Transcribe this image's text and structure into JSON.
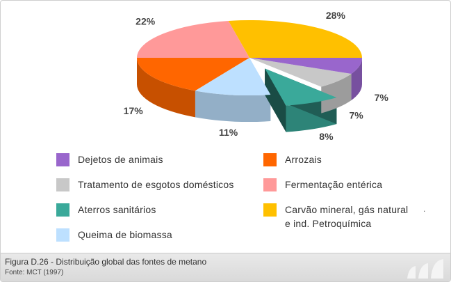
{
  "chart_data": {
    "type": "pie",
    "title": "",
    "slices": [
      {
        "label": "Carvão mineral, gás natural\ne ind. Petroquímica",
        "value": 28,
        "value_label": "28%",
        "color": "#ffc000",
        "exploded": false
      },
      {
        "label": "Fermentação entérica",
        "value": 22,
        "value_label": "22%",
        "color": "#ff9999",
        "exploded": false
      },
      {
        "label": "Arrozais",
        "value": 17,
        "value_label": "17%",
        "color": "#ff6600",
        "exploded": false
      },
      {
        "label": "Queima de biomassa",
        "value": 11,
        "value_label": "11%",
        "color": "#bde0ff",
        "exploded": false
      },
      {
        "label": "Aterros sanitários",
        "value": 8,
        "value_label": "8%",
        "color": "#3aa99a",
        "exploded": true
      },
      {
        "label": "Tratamento de esgotos domésticos",
        "value": 7,
        "value_label": "7%",
        "color": "#c8c8c8",
        "exploded": false
      },
      {
        "label": "Dejetos de animais",
        "value": 7,
        "value_label": "7%",
        "color": "#9966cc",
        "exploded": false
      }
    ],
    "legend_placement": "bottom"
  },
  "legend_order": [
    6,
    2,
    5,
    1,
    4,
    0,
    3
  ],
  "caption": {
    "title": "Figura D.26 - Distribuição global das fontes de metano",
    "source": "Fonte: MCT (1997)"
  },
  "stray_mark": "."
}
